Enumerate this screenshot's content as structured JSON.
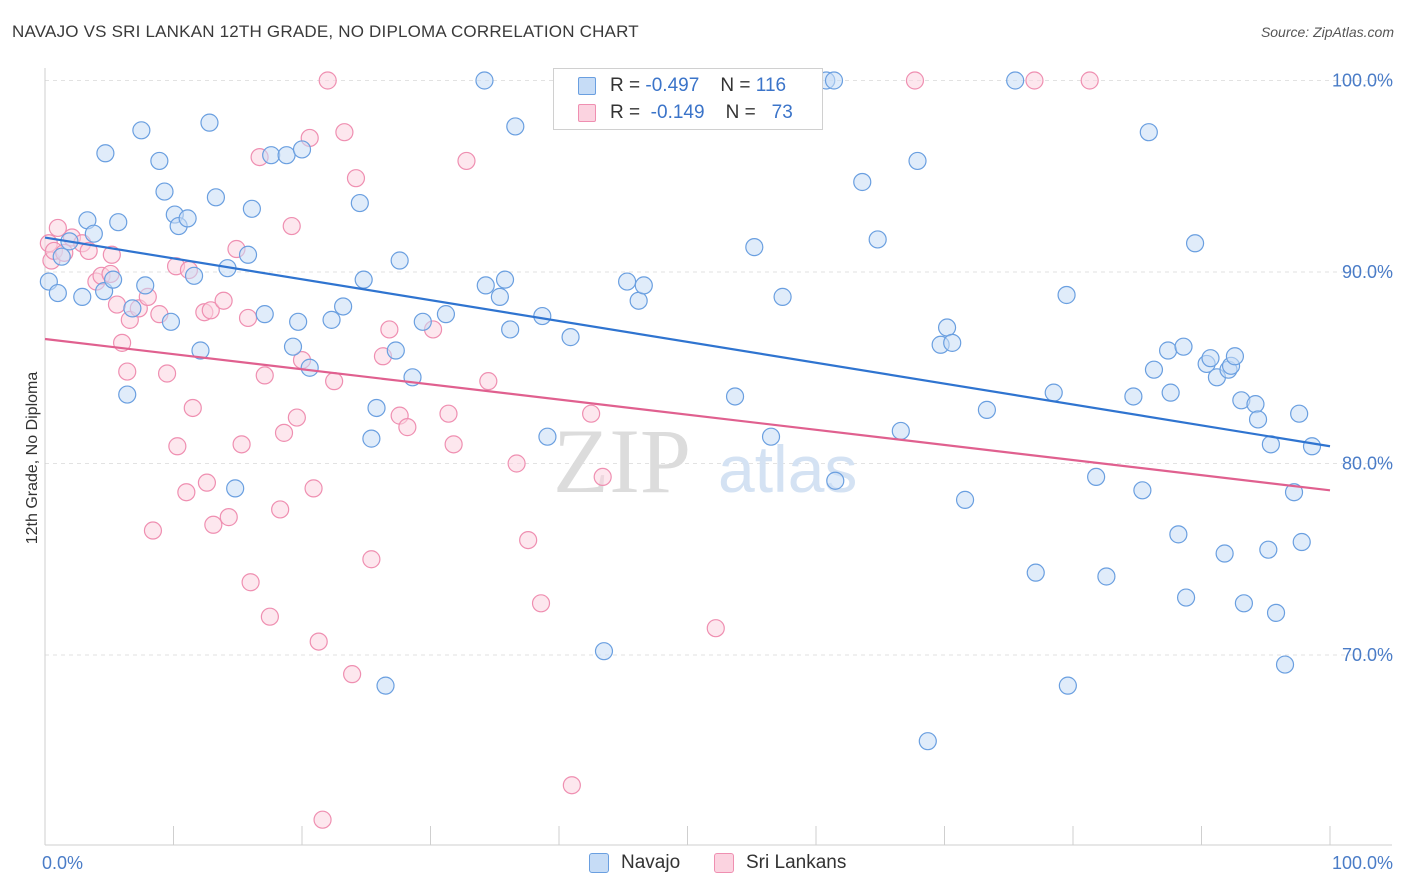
{
  "title": "NAVAJO VS SRI LANKAN 12TH GRADE, NO DIPLOMA CORRELATION CHART",
  "source": "Source: ZipAtlas.com",
  "watermark": {
    "zip": "ZIP",
    "atlas": "atlas"
  },
  "legend": {
    "r_label": "R =",
    "n_label": "N =",
    "rows": [
      {
        "r": "-0.497",
        "n": "116",
        "color": "#6a9fe0",
        "fill": "#c6dcf6"
      },
      {
        "r": "-0.149",
        "n": "73",
        "color": "#ef8fb1",
        "fill": "#fbd3e0"
      }
    ]
  },
  "bottom_legend": [
    {
      "label": "Navajo",
      "color": "#6a9fe0",
      "fill": "#c6dcf6"
    },
    {
      "label": "Sri Lankans",
      "color": "#ef8fb1",
      "fill": "#fbd3e0"
    }
  ],
  "chart_data": {
    "type": "scatter",
    "title": "NAVAJO VS SRI LANKAN 12TH GRADE, NO DIPLOMA CORRELATION CHART",
    "xlabel": "",
    "ylabel": "12th Grade, No Diploma",
    "xlim": [
      0,
      100
    ],
    "ylim": [
      60,
      101.5
    ],
    "x_ticks": [
      "0.0%",
      "100.0%"
    ],
    "y_ticks": [
      {
        "value": 100,
        "label": "100.0%"
      },
      {
        "value": 90,
        "label": "90.0%"
      },
      {
        "value": 80,
        "label": "80.0%"
      },
      {
        "value": 70,
        "label": "70.0%"
      }
    ],
    "grid": true,
    "legend_position": "top-center",
    "series": [
      {
        "name": "Navajo",
        "color": "#6a9fe0",
        "fill": "#c6dcf6",
        "trend": {
          "x": [
            0,
            100
          ],
          "y": [
            91.8,
            80.9
          ]
        },
        "points": [
          [
            0.3,
            89.5
          ],
          [
            1.0,
            88.9
          ],
          [
            1.3,
            90.8
          ],
          [
            1.9,
            91.6
          ],
          [
            2.9,
            88.7
          ],
          [
            3.3,
            92.7
          ],
          [
            3.8,
            92.0
          ],
          [
            4.6,
            89.0
          ],
          [
            4.7,
            96.2
          ],
          [
            5.3,
            89.6
          ],
          [
            5.7,
            92.6
          ],
          [
            6.4,
            83.6
          ],
          [
            6.8,
            88.1
          ],
          [
            7.5,
            97.4
          ],
          [
            7.8,
            89.3
          ],
          [
            8.9,
            95.8
          ],
          [
            9.3,
            94.2
          ],
          [
            9.8,
            87.4
          ],
          [
            10.1,
            93.0
          ],
          [
            10.4,
            92.4
          ],
          [
            11.1,
            92.8
          ],
          [
            11.6,
            89.8
          ],
          [
            12.1,
            85.9
          ],
          [
            12.8,
            97.8
          ],
          [
            13.3,
            93.9
          ],
          [
            14.2,
            90.2
          ],
          [
            14.8,
            78.7
          ],
          [
            15.8,
            90.9
          ],
          [
            16.1,
            93.3
          ],
          [
            17.1,
            87.8
          ],
          [
            17.6,
            96.1
          ],
          [
            18.8,
            96.1
          ],
          [
            19.3,
            86.1
          ],
          [
            19.7,
            87.4
          ],
          [
            20.0,
            96.4
          ],
          [
            20.6,
            85.0
          ],
          [
            22.3,
            87.5
          ],
          [
            23.2,
            88.2
          ],
          [
            24.5,
            93.6
          ],
          [
            24.8,
            89.6
          ],
          [
            25.4,
            81.3
          ],
          [
            25.8,
            82.9
          ],
          [
            26.5,
            68.4
          ],
          [
            27.3,
            85.9
          ],
          [
            27.6,
            90.6
          ],
          [
            28.6,
            84.5
          ],
          [
            29.4,
            87.4
          ],
          [
            31.2,
            87.8
          ],
          [
            34.2,
            100.0
          ],
          [
            34.3,
            89.3
          ],
          [
            35.4,
            88.7
          ],
          [
            35.8,
            89.6
          ],
          [
            36.2,
            87.0
          ],
          [
            36.6,
            97.6
          ],
          [
            38.7,
            87.7
          ],
          [
            39.1,
            81.4
          ],
          [
            40.9,
            86.6
          ],
          [
            43.5,
            70.2
          ],
          [
            45.3,
            89.5
          ],
          [
            46.2,
            88.5
          ],
          [
            46.6,
            89.3
          ],
          [
            53.7,
            83.5
          ],
          [
            54.0,
            100.0
          ],
          [
            55.2,
            91.3
          ],
          [
            56.5,
            81.4
          ],
          [
            57.4,
            88.7
          ],
          [
            60.8,
            100.0
          ],
          [
            61.4,
            100.0
          ],
          [
            61.5,
            79.1
          ],
          [
            63.6,
            94.7
          ],
          [
            64.8,
            91.7
          ],
          [
            66.6,
            81.7
          ],
          [
            67.9,
            95.8
          ],
          [
            68.7,
            65.5
          ],
          [
            69.7,
            86.2
          ],
          [
            70.2,
            87.1
          ],
          [
            70.6,
            86.3
          ],
          [
            71.6,
            78.1
          ],
          [
            73.3,
            82.8
          ],
          [
            75.5,
            100.0
          ],
          [
            77.1,
            74.3
          ],
          [
            78.5,
            83.7
          ],
          [
            79.5,
            88.8
          ],
          [
            79.6,
            68.4
          ],
          [
            81.8,
            79.3
          ],
          [
            82.6,
            74.1
          ],
          [
            84.7,
            83.5
          ],
          [
            85.4,
            78.6
          ],
          [
            85.9,
            97.3
          ],
          [
            86.3,
            84.9
          ],
          [
            87.4,
            85.9
          ],
          [
            87.6,
            83.7
          ],
          [
            88.2,
            76.3
          ],
          [
            88.6,
            86.1
          ],
          [
            88.8,
            73.0
          ],
          [
            89.5,
            91.5
          ],
          [
            90.4,
            85.2
          ],
          [
            90.7,
            85.5
          ],
          [
            91.2,
            84.5
          ],
          [
            91.8,
            75.3
          ],
          [
            92.1,
            84.9
          ],
          [
            92.3,
            85.1
          ],
          [
            92.6,
            85.6
          ],
          [
            93.1,
            83.3
          ],
          [
            93.3,
            72.7
          ],
          [
            94.2,
            83.1
          ],
          [
            94.4,
            82.3
          ],
          [
            95.2,
            75.5
          ],
          [
            95.4,
            81.0
          ],
          [
            95.8,
            72.2
          ],
          [
            96.5,
            69.5
          ],
          [
            97.2,
            78.5
          ],
          [
            97.6,
            82.6
          ],
          [
            97.8,
            75.9
          ],
          [
            98.6,
            80.9
          ]
        ]
      },
      {
        "name": "Sri Lankans",
        "color": "#ef8fb1",
        "fill": "#fbd3e0",
        "trend": {
          "x": [
            0,
            100
          ],
          "y": [
            86.5,
            78.6
          ]
        },
        "points": [
          [
            0.3,
            91.5
          ],
          [
            0.5,
            90.6
          ],
          [
            0.7,
            91.1
          ],
          [
            1.0,
            92.3
          ],
          [
            1.5,
            91.0
          ],
          [
            2.1,
            91.8
          ],
          [
            2.9,
            91.5
          ],
          [
            3.4,
            91.1
          ],
          [
            4.0,
            89.5
          ],
          [
            4.4,
            89.8
          ],
          [
            5.1,
            89.9
          ],
          [
            5.2,
            90.9
          ],
          [
            5.6,
            88.3
          ],
          [
            6.0,
            86.3
          ],
          [
            6.4,
            84.8
          ],
          [
            6.6,
            87.5
          ],
          [
            7.3,
            88.1
          ],
          [
            8.0,
            88.7
          ],
          [
            8.4,
            76.5
          ],
          [
            8.9,
            87.8
          ],
          [
            9.5,
            84.7
          ],
          [
            10.2,
            90.3
          ],
          [
            10.3,
            80.9
          ],
          [
            11.0,
            78.5
          ],
          [
            11.2,
            90.1
          ],
          [
            11.5,
            82.9
          ],
          [
            12.4,
            87.9
          ],
          [
            12.6,
            79.0
          ],
          [
            12.9,
            88.0
          ],
          [
            13.1,
            76.8
          ],
          [
            13.9,
            88.5
          ],
          [
            14.3,
            77.2
          ],
          [
            14.9,
            91.2
          ],
          [
            15.3,
            81.0
          ],
          [
            15.8,
            87.6
          ],
          [
            16.0,
            73.8
          ],
          [
            16.7,
            96.0
          ],
          [
            17.1,
            84.6
          ],
          [
            17.5,
            72.0
          ],
          [
            18.3,
            77.6
          ],
          [
            18.6,
            81.6
          ],
          [
            19.2,
            92.4
          ],
          [
            19.6,
            82.4
          ],
          [
            20.0,
            85.4
          ],
          [
            20.6,
            97.0
          ],
          [
            20.9,
            78.7
          ],
          [
            21.3,
            70.7
          ],
          [
            21.6,
            61.4
          ],
          [
            22.0,
            100.0
          ],
          [
            22.5,
            84.3
          ],
          [
            23.3,
            97.3
          ],
          [
            23.9,
            69.0
          ],
          [
            24.2,
            94.9
          ],
          [
            25.4,
            75.0
          ],
          [
            26.3,
            85.6
          ],
          [
            26.8,
            87.0
          ],
          [
            27.6,
            82.5
          ],
          [
            28.2,
            81.9
          ],
          [
            30.2,
            87.0
          ],
          [
            31.4,
            82.6
          ],
          [
            31.8,
            81.0
          ],
          [
            32.8,
            95.8
          ],
          [
            34.5,
            84.3
          ],
          [
            36.7,
            80.0
          ],
          [
            37.6,
            76.0
          ],
          [
            38.6,
            72.7
          ],
          [
            41.0,
            63.2
          ],
          [
            42.5,
            82.6
          ],
          [
            43.4,
            79.3
          ],
          [
            52.2,
            71.4
          ],
          [
            67.7,
            100.0
          ],
          [
            77.0,
            100.0
          ],
          [
            81.3,
            100.0
          ]
        ]
      }
    ]
  }
}
